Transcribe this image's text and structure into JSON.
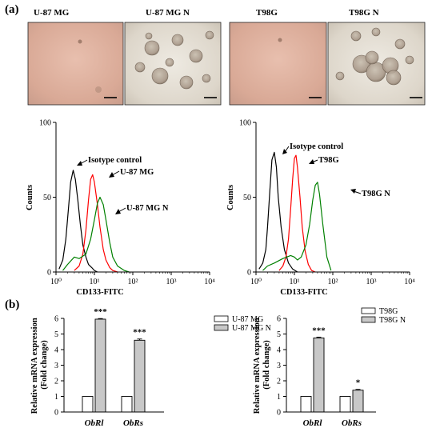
{
  "figure": {
    "panel_a_letter": "(a)",
    "panel_b_letter": "(b)"
  },
  "micrographs": [
    {
      "label": "U-87 MG",
      "tone": "pink"
    },
    {
      "label": "U-87 MG  N",
      "tone": "gray"
    },
    {
      "label": "T98G",
      "tone": "pink"
    },
    {
      "label": "T98G  N",
      "tone": "gray"
    }
  ],
  "chart_data": [
    {
      "type": "line",
      "subtype": "flow-cytometry-histogram",
      "xlabel": "CD133-FITC",
      "ylabel": "Counts",
      "x_scale": "log",
      "xlim": [
        1,
        10000
      ],
      "ylim": [
        0,
        100
      ],
      "x_ticks": [
        "10⁰",
        "10¹",
        "10²",
        "10³",
        "10⁴"
      ],
      "y_ticks": [
        "0",
        "50",
        "100"
      ],
      "series": [
        {
          "color": "#000000",
          "annotation": "Isotype control",
          "x": [
            1.2,
            1.5,
            1.8,
            2.1,
            2.4,
            2.8,
            3.2,
            3.7,
            4.3,
            5,
            6,
            7,
            8.5,
            10,
            12
          ],
          "y": [
            2,
            8,
            22,
            42,
            60,
            68,
            62,
            48,
            32,
            18,
            10,
            5,
            3,
            1,
            0
          ]
        },
        {
          "color": "#ff0000",
          "annotation": "U-87 MG",
          "x": [
            3,
            4,
            5,
            6,
            7,
            8,
            9,
            10,
            12,
            14,
            17,
            20,
            25,
            30,
            40
          ],
          "y": [
            1,
            4,
            12,
            28,
            48,
            62,
            65,
            60,
            45,
            30,
            15,
            8,
            3,
            1,
            0
          ]
        },
        {
          "color": "#008000",
          "annotation": "U-87 MG N",
          "x": [
            1.5,
            2,
            3,
            4,
            6,
            8,
            10,
            12,
            14,
            17,
            20,
            25,
            30,
            40,
            60,
            80
          ],
          "y": [
            1,
            5,
            10,
            9,
            12,
            22,
            35,
            46,
            50,
            45,
            35,
            20,
            10,
            4,
            1,
            0
          ]
        }
      ]
    },
    {
      "type": "line",
      "subtype": "flow-cytometry-histogram",
      "xlabel": "CD133-FITC",
      "ylabel": "Counts",
      "x_scale": "log",
      "xlim": [
        1,
        10000
      ],
      "ylim": [
        0,
        100
      ],
      "x_ticks": [
        "10⁰",
        "10¹",
        "10²",
        "10³",
        "10⁴"
      ],
      "y_ticks": [
        "0",
        "50",
        "100"
      ],
      "series": [
        {
          "color": "#000000",
          "annotation": "Isotype control",
          "x": [
            1.2,
            1.5,
            1.8,
            2,
            2.3,
            2.6,
            3,
            3.4,
            3.8,
            4.5,
            5.5,
            7,
            9,
            12
          ],
          "y": [
            2,
            6,
            15,
            30,
            55,
            75,
            80,
            70,
            50,
            30,
            15,
            6,
            2,
            0
          ]
        },
        {
          "color": "#ff0000",
          "annotation": "T98G",
          "x": [
            4,
            5,
            6,
            7,
            8,
            9,
            10,
            11,
            12,
            14,
            16,
            19,
            23,
            28,
            35
          ],
          "y": [
            1,
            4,
            10,
            22,
            42,
            62,
            76,
            78,
            70,
            50,
            30,
            14,
            5,
            1,
            0
          ]
        },
        {
          "color": "#008000",
          "annotation": "T98G N",
          "x": [
            1.5,
            2,
            3,
            5,
            8,
            10,
            12,
            15,
            20,
            25,
            30,
            35,
            40,
            45,
            55,
            70,
            90
          ],
          "y": [
            1,
            4,
            6,
            9,
            11,
            10,
            8,
            10,
            18,
            32,
            48,
            58,
            60,
            52,
            32,
            10,
            1
          ]
        }
      ]
    },
    {
      "type": "bar",
      "categories": [
        "ObRl",
        "ObRs"
      ],
      "ylabel": "Relative mRNA expression\n(Fold change)",
      "ylim": [
        0,
        6
      ],
      "y_ticks": [
        "0",
        "1",
        "2",
        "3",
        "4",
        "5",
        "6"
      ],
      "series": [
        {
          "name": "U-87 MG",
          "color": "#ffffff",
          "values": [
            1,
            1
          ],
          "errors": [
            0,
            0
          ]
        },
        {
          "name": "U-87 MG N",
          "color": "#c8c8c8",
          "values": [
            5.95,
            4.6
          ],
          "errors": [
            0.04,
            0.08
          ]
        }
      ],
      "significance": [
        "***",
        "***"
      ],
      "legend": "right"
    },
    {
      "type": "bar",
      "categories": [
        "ObRl",
        "ObRs"
      ],
      "ylabel": "Relative mRNA expression\n(Fold change)",
      "ylim": [
        0,
        6
      ],
      "y_ticks": [
        "0",
        "1",
        "2",
        "3",
        "4",
        "5",
        "6"
      ],
      "series": [
        {
          "name": "T98G",
          "color": "#ffffff",
          "values": [
            1,
            1
          ],
          "errors": [
            0,
            0
          ]
        },
        {
          "name": "T98G N",
          "color": "#c8c8c8",
          "values": [
            4.75,
            1.4
          ],
          "errors": [
            0.05,
            0.05
          ]
        }
      ],
      "significance": [
        "***",
        "*"
      ],
      "legend": "top-right"
    }
  ]
}
